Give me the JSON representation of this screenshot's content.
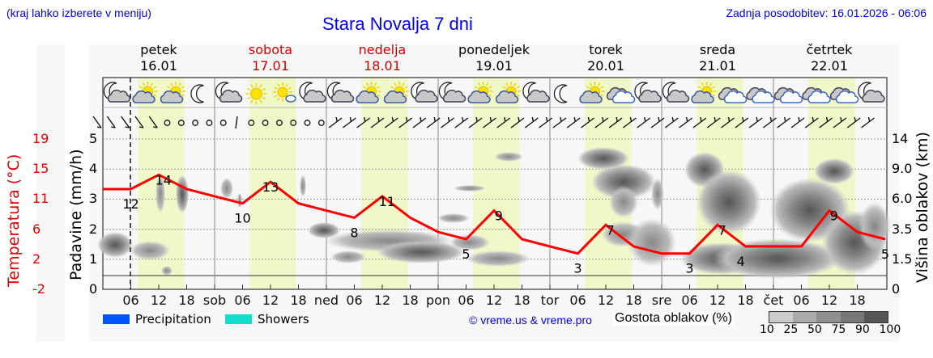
{
  "header": {
    "left_note": "(kraj lahko izberete v meniju)",
    "title": "Stara Novalja 7 dni",
    "updated": "Zadnja posodobitev: 16.01.2026 - 06:06"
  },
  "days": [
    {
      "name": "petek",
      "date": "16.01",
      "weekend": false
    },
    {
      "name": "sobota",
      "date": "17.01",
      "weekend": true
    },
    {
      "name": "nedelja",
      "date": "18.01",
      "weekend": true
    },
    {
      "name": "ponedeljek",
      "date": "19.01",
      "weekend": false
    },
    {
      "name": "torek",
      "date": "20.01",
      "weekend": false
    },
    {
      "name": "sreda",
      "date": "21.01",
      "weekend": false
    },
    {
      "name": "četrtek",
      "date": "22.01",
      "weekend": false
    }
  ],
  "axes": {
    "temp_label": "Temperatura (°C)",
    "precip_label": "Padavine (mm/h)",
    "cloud_label": "Višina oblakov (km)",
    "temp_ticks": [
      "19",
      "15",
      "11",
      "6",
      "2",
      "-2"
    ],
    "precip_ticks": [
      "0",
      "1",
      "2",
      "3",
      "4",
      "5"
    ],
    "cloud_ticks": [
      "0",
      "1.5",
      "3.5",
      "6.0",
      "9.0",
      "14"
    ],
    "x_ticks": [
      "06",
      "12",
      "18",
      "sob",
      "06",
      "12",
      "18",
      "ned",
      "06",
      "12",
      "18",
      "pon",
      "06",
      "12",
      "18",
      "tor",
      "06",
      "12",
      "18",
      "sre",
      "06",
      "12",
      "18",
      "čet",
      "06",
      "12",
      "18"
    ]
  },
  "legend": {
    "precipitation": "Precipitation",
    "showers": "Showers",
    "precipitation_color": "#0055ff",
    "showers_color": "#11ddcc",
    "copyright": "© vreme.us & vreme.pro",
    "cloud_density_label": "Gostota oblakov (%)",
    "cloud_density_ticks": [
      "10",
      "25",
      "50",
      "75",
      "90",
      "100"
    ],
    "cloud_density_colors": [
      "#cccccc",
      "#aaaaaa",
      "#909090",
      "#777777",
      "#555555"
    ]
  },
  "icons": [
    "moon-cloud",
    "sun-cloud",
    "sun-cloud",
    "moon",
    "moon-cloud",
    "sun",
    "sun-small-cloud",
    "moon-cloud",
    "moon-cloud",
    "sun-cloud",
    "sun-cloud",
    "moon-cloud",
    "moon-cloud",
    "sun-cloud",
    "sun-cloud",
    "moon-cloud",
    "moon",
    "sun-cloud",
    "cloud-white",
    "moon-cloud",
    "moon-cloud",
    "sun-cloud",
    "cloud-white",
    "cloud-white",
    "cloud-white",
    "cloud-white",
    "cloud-white",
    "moon-cloud"
  ],
  "chart_data": {
    "type": "line",
    "title": "Stara Novalja 7 dni",
    "xlabel": "",
    "ylabel": "Temperatura (°C)",
    "ylim": [
      -2,
      21
    ],
    "series": [
      {
        "name": "Temperatura",
        "color": "#ff0000",
        "x_hours": [
          0,
          6,
          12,
          18,
          24,
          30,
          36,
          42,
          48,
          54,
          60,
          66,
          72,
          78,
          84,
          90,
          96,
          102,
          108,
          114,
          120,
          126,
          132,
          138,
          144,
          150,
          156,
          162,
          168
        ],
        "values": [
          12,
          12,
          14,
          12,
          11,
          10,
          13,
          10,
          9,
          8,
          11,
          8,
          6,
          5,
          9,
          5,
          4,
          3,
          7,
          4,
          3,
          3,
          7,
          4,
          4,
          4,
          9,
          6,
          5
        ]
      }
    ],
    "annotations": [
      {
        "label": "12",
        "hour": 6
      },
      {
        "label": "14",
        "hour": 13
      },
      {
        "label": "10",
        "hour": 30
      },
      {
        "label": "13",
        "hour": 36
      },
      {
        "label": "8",
        "hour": 54
      },
      {
        "label": "11",
        "hour": 61
      },
      {
        "label": "5",
        "hour": 78
      },
      {
        "label": "9",
        "hour": 85
      },
      {
        "label": "3",
        "hour": 102
      },
      {
        "label": "7",
        "hour": 109
      },
      {
        "label": "3",
        "hour": 126
      },
      {
        "label": "7",
        "hour": 133
      },
      {
        "label": "4",
        "hour": 137
      },
      {
        "label": "9",
        "hour": 157
      },
      {
        "label": "5",
        "hour": 168
      }
    ],
    "precipitation_mm_h": "0 throughout",
    "cloud_height_km_ticks": [
      0,
      1.5,
      3.5,
      6.0,
      9.0,
      14
    ],
    "daylight_bands": "approx 07:30–17:00 each day",
    "grid": true
  }
}
